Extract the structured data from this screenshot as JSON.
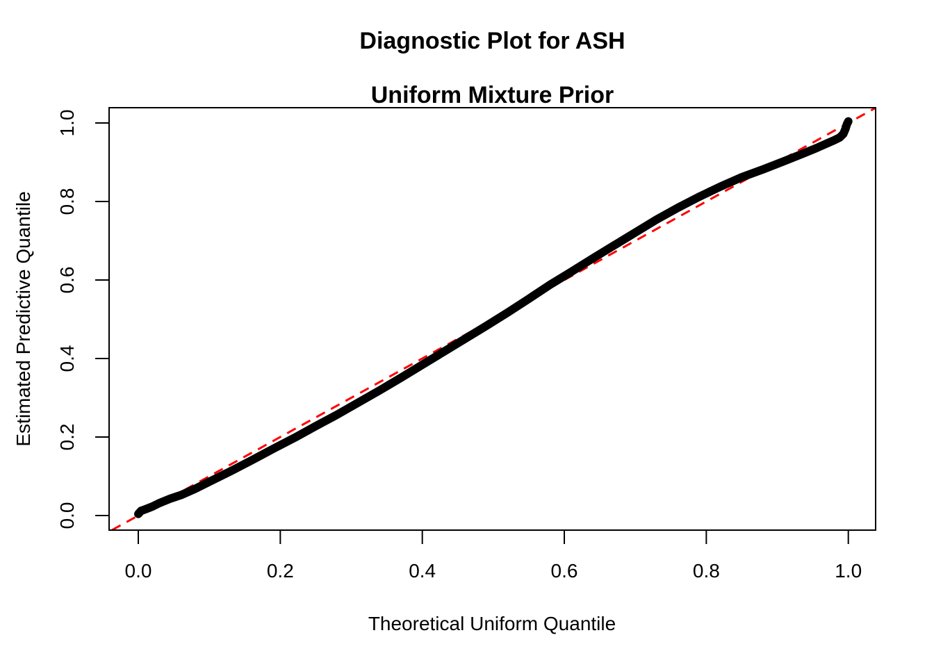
{
  "title": {
    "line1": "Diagnostic Plot for ASH",
    "line2": "Uniform Mixture Prior"
  },
  "axes": {
    "x_label": "Theoretical Uniform Quantile",
    "y_label": "Estimated Predictive Quantile",
    "x_tick_labels": [
      "0.0",
      "0.2",
      "0.4",
      "0.6",
      "0.8",
      "1.0"
    ],
    "y_tick_labels": [
      "0.0",
      "0.2",
      "0.4",
      "0.6",
      "0.8",
      "1.0"
    ]
  },
  "colors": {
    "background": "#FFFFFF",
    "axis": "#000000",
    "curve": "#000000",
    "reference_line": "#FF0000"
  },
  "chart_data": {
    "type": "line",
    "title": "Diagnostic Plot for ASH\nUniform Mixture Prior",
    "xlabel": "Theoretical Uniform Quantile",
    "ylabel": "Estimated Predictive Quantile",
    "xlim": [
      -0.04,
      1.04
    ],
    "ylim": [
      -0.037,
      1.04
    ],
    "x_ticks": [
      0.0,
      0.2,
      0.4,
      0.6,
      0.8,
      1.0
    ],
    "y_ticks": [
      0.0,
      0.2,
      0.4,
      0.6,
      0.8,
      1.0
    ],
    "grid": false,
    "legend": false,
    "series": [
      {
        "name": "estimated-predictive-quantile-curve",
        "style": "thick-solid",
        "color": "#000000",
        "points": [
          [
            0.0,
            0.004
          ],
          [
            0.004,
            0.012
          ],
          [
            0.01,
            0.016
          ],
          [
            0.02,
            0.023
          ],
          [
            0.03,
            0.032
          ],
          [
            0.045,
            0.043
          ],
          [
            0.06,
            0.052
          ],
          [
            0.08,
            0.068
          ],
          [
            0.1,
            0.086
          ],
          [
            0.13,
            0.113
          ],
          [
            0.16,
            0.141
          ],
          [
            0.19,
            0.17
          ],
          [
            0.22,
            0.198
          ],
          [
            0.25,
            0.228
          ],
          [
            0.28,
            0.257
          ],
          [
            0.31,
            0.288
          ],
          [
            0.34,
            0.319
          ],
          [
            0.37,
            0.351
          ],
          [
            0.4,
            0.384
          ],
          [
            0.43,
            0.417
          ],
          [
            0.46,
            0.45
          ],
          [
            0.49,
            0.483
          ],
          [
            0.52,
            0.517
          ],
          [
            0.55,
            0.552
          ],
          [
            0.58,
            0.588
          ],
          [
            0.61,
            0.621
          ],
          [
            0.64,
            0.655
          ],
          [
            0.67,
            0.688
          ],
          [
            0.7,
            0.721
          ],
          [
            0.73,
            0.754
          ],
          [
            0.76,
            0.784
          ],
          [
            0.79,
            0.812
          ],
          [
            0.82,
            0.838
          ],
          [
            0.85,
            0.862
          ],
          [
            0.88,
            0.882
          ],
          [
            0.91,
            0.903
          ],
          [
            0.935,
            0.921
          ],
          [
            0.955,
            0.936
          ],
          [
            0.97,
            0.948
          ],
          [
            0.98,
            0.956
          ],
          [
            0.988,
            0.963
          ],
          [
            0.993,
            0.972
          ],
          [
            0.996,
            0.985
          ],
          [
            0.998,
            0.997
          ],
          [
            1.0,
            1.004
          ]
        ]
      },
      {
        "name": "reference-diagonal",
        "style": "dashed",
        "color": "#FF0000",
        "points": [
          [
            -0.037,
            -0.037
          ],
          [
            1.038,
            1.038
          ]
        ]
      }
    ]
  }
}
